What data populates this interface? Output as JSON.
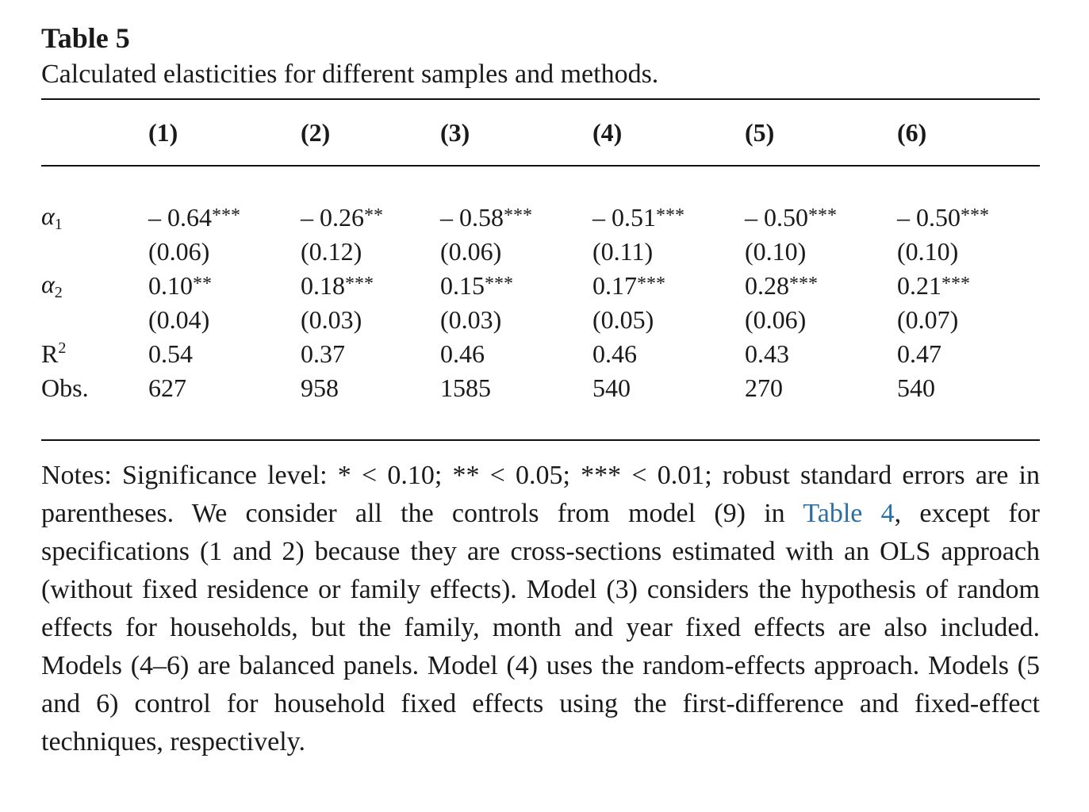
{
  "table_label": "Table 5",
  "caption": "Calculated elasticities for different samples and methods.",
  "columns": [
    "(1)",
    "(2)",
    "(3)",
    "(4)",
    "(5)",
    "(6)"
  ],
  "rows": {
    "alpha1": {
      "symbol": "α",
      "subscript": "1",
      "coefficients": [
        {
          "value": "– 0.64",
          "stars": "***"
        },
        {
          "value": "– 0.26",
          "stars": "**"
        },
        {
          "value": "– 0.58",
          "stars": "***"
        },
        {
          "value": "– 0.51",
          "stars": "***"
        },
        {
          "value": "– 0.50",
          "stars": "***"
        },
        {
          "value": "– 0.50",
          "stars": "***"
        }
      ],
      "std_errors": [
        "(0.06)",
        "(0.12)",
        "(0.06)",
        "(0.11)",
        "(0.10)",
        "(0.10)"
      ]
    },
    "alpha2": {
      "symbol": "α",
      "subscript": "2",
      "coefficients": [
        {
          "value": "0.10",
          "stars": "**"
        },
        {
          "value": "0.18",
          "stars": "***"
        },
        {
          "value": "0.15",
          "stars": "***"
        },
        {
          "value": "0.17",
          "stars": "***"
        },
        {
          "value": "0.28",
          "stars": "***"
        },
        {
          "value": "0.21",
          "stars": "***"
        }
      ],
      "std_errors": [
        "(0.04)",
        "(0.03)",
        "(0.03)",
        "(0.05)",
        "(0.06)",
        "(0.07)"
      ]
    },
    "r2": {
      "label": "R",
      "superscript": "2",
      "values": [
        "0.54",
        "0.37",
        "0.46",
        "0.46",
        "0.43",
        "0.47"
      ]
    },
    "obs": {
      "label": "Obs.",
      "values": [
        "627",
        "958",
        "1585",
        "540",
        "270",
        "540"
      ]
    }
  },
  "notes": {
    "part1": "Notes: Significance level: * < 0.10; ** < 0.05; *** < 0.01; robust standard errors are in parentheses. We consider all the controls from model (9) in ",
    "link": "Table 4",
    "part2": ", except for specifications (1 and 2) because they are cross-sections estimated with an OLS approach (without fixed residence or family effects). Model (3) considers the hypothesis of random effects for households, but the family, month and year fixed effects are also included. Models (4–6) are balanced panels. Model (4) uses the random-effects approach. Models (5 and 6) control for household fixed effects using the first-difference and fixed-effect techniques, respectively."
  },
  "colors": {
    "text": "#1a1a1a",
    "link": "#2a6ea6",
    "rule": "#111111"
  }
}
